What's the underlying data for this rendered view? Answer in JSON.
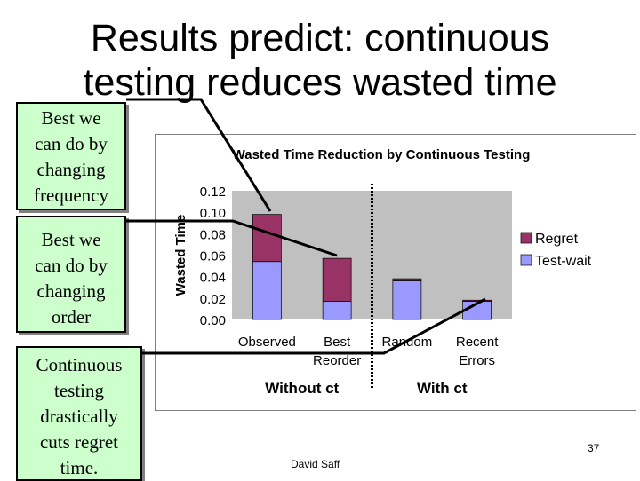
{
  "slide": {
    "title_line1": "Results predict: continuous",
    "title_line2": "testing reduces wasted time",
    "callouts": {
      "frequency": [
        "Best we",
        "can do by",
        "changing",
        "frequency"
      ],
      "order": [
        "Best we",
        "can do by",
        "changing",
        "order"
      ],
      "continuous": [
        "Continuous",
        "testing",
        "drastically",
        "cuts regret",
        "time."
      ]
    },
    "footer": "David Saff",
    "page_number": "37"
  },
  "chart_data": {
    "type": "bar",
    "stacked": true,
    "title": "Wasted Time Reduction by Continuous Testing",
    "ylabel": "Wasted Time",
    "xlabel": "",
    "ylim": [
      0,
      0.12
    ],
    "yticks": [
      "0.12",
      "0.10",
      "0.08",
      "0.06",
      "0.04",
      "0.02",
      "0.00"
    ],
    "categories": [
      "Observed",
      "Best Reorder",
      "Random",
      "Recent Errors"
    ],
    "category_lines": [
      [
        "Observed"
      ],
      [
        "Best",
        "Reorder"
      ],
      [
        "Random"
      ],
      [
        "Recent",
        "Errors"
      ]
    ],
    "series": [
      {
        "name": "Test-wait",
        "color": "#9999ff",
        "values": [
          0.054,
          0.017,
          0.036,
          0.017
        ]
      },
      {
        "name": "Regret",
        "color": "#993366",
        "values": [
          0.044,
          0.04,
          0.002,
          0.001
        ]
      }
    ],
    "legend_order": [
      "Regret",
      "Test-wait"
    ],
    "legend_position": "right",
    "groups": [
      {
        "label": "Without ct",
        "categories": [
          "Observed",
          "Best Reorder"
        ]
      },
      {
        "label": "With ct",
        "categories": [
          "Random",
          "Recent Errors"
        ]
      }
    ],
    "plot_background": "#c0c0c0",
    "grid": false
  }
}
